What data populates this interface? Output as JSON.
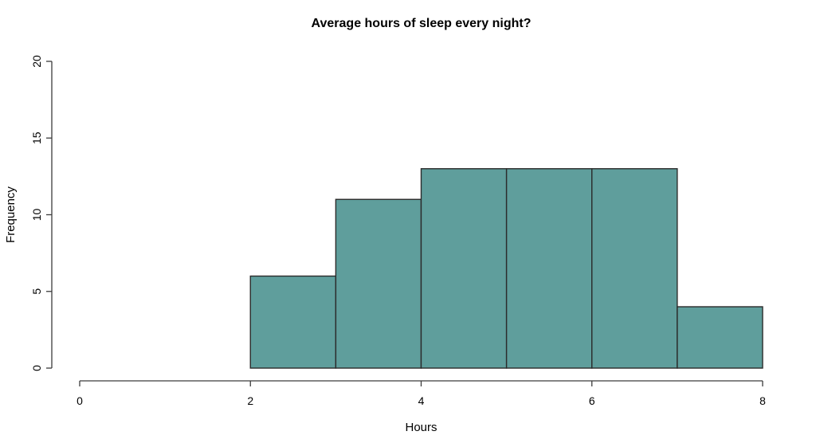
{
  "figure": {
    "background": "#ffffff"
  },
  "chart_data": {
    "type": "bar",
    "subtype": "histogram",
    "title": "Average hours of sleep every night?",
    "xlabel": "Hours",
    "ylabel": "Frequency",
    "xlim": [
      0,
      8
    ],
    "ylim": [
      0,
      20
    ],
    "x_ticks": [
      0,
      2,
      4,
      6,
      8
    ],
    "y_ticks": [
      0,
      5,
      10,
      15,
      20
    ],
    "bins": [
      {
        "start": 2,
        "end": 3,
        "count": 6
      },
      {
        "start": 3,
        "end": 4,
        "count": 11
      },
      {
        "start": 4,
        "end": 5,
        "count": 13
      },
      {
        "start": 5,
        "end": 6,
        "count": 13
      },
      {
        "start": 6,
        "end": 7,
        "count": 13
      },
      {
        "start": 7,
        "end": 8,
        "count": 4
      }
    ],
    "grid": false,
    "legend": null,
    "colors": {
      "bar_fill": "#5f9e9c",
      "bar_border": "#2b2b2b",
      "axis": "#3c3c3c",
      "text": "#000000",
      "background": "#ffffff"
    }
  }
}
